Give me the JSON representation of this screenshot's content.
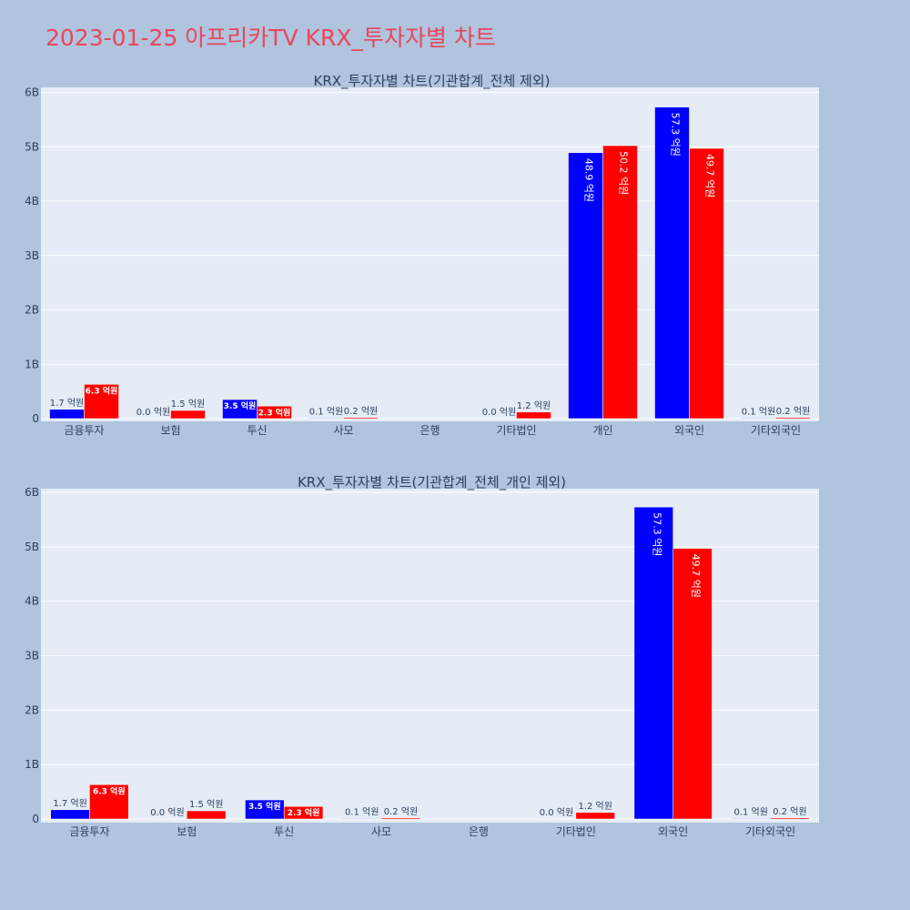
{
  "page": {
    "title": "2023-01-25 아프리카TV KRX_투자자별 차트"
  },
  "colors": {
    "background": "#b0c4de",
    "plot_bg": "#e5ecf6",
    "title": "#e8475c",
    "sell": "#0000ff",
    "buy": "#ff0000"
  },
  "chart_data": [
    {
      "type": "bar",
      "title": "KRX_투자자별 차트(기관합계_전체 제외)",
      "categories": [
        "금융투자",
        "보험",
        "투신",
        "사모",
        "은행",
        "기타법인",
        "개인",
        "외국인",
        "기타외국인"
      ],
      "ylim": [
        0,
        6000000000
      ],
      "yticks": [
        0,
        1000000000,
        2000000000,
        3000000000,
        4000000000,
        5000000000,
        6000000000
      ],
      "ytick_labels": [
        "0",
        "1B",
        "2B",
        "3B",
        "4B",
        "5B",
        "6B"
      ],
      "grid": true,
      "series": [
        {
          "color": "#0000ff",
          "values": [
            170000000,
            0,
            350000000,
            10000000,
            0,
            0,
            4890000000,
            5730000000,
            10000000
          ],
          "labels": [
            "1.7 억원",
            "0.0 억원",
            "3.5 억원",
            "0.1 억원",
            "",
            "0.0 억원",
            "48.9 억원",
            "57.3 억원",
            "0.1 억원"
          ]
        },
        {
          "color": "#ff0000",
          "values": [
            630000000,
            150000000,
            230000000,
            20000000,
            0,
            120000000,
            5020000000,
            4970000000,
            20000000
          ],
          "labels": [
            "6.3 억원",
            "1.5 억원",
            "2.3 억원",
            "0.2 억원",
            "",
            "1.2 억원",
            "50.2 억원",
            "49.7 억원",
            "0.2 억원"
          ]
        }
      ]
    },
    {
      "type": "bar",
      "title": "KRX_투자자별 차트(기관합계_전체_개인 제외)",
      "categories": [
        "금융투자",
        "보험",
        "투신",
        "사모",
        "은행",
        "기타법인",
        "외국인",
        "기타외국인"
      ],
      "ylim": [
        0,
        6000000000
      ],
      "yticks": [
        0,
        1000000000,
        2000000000,
        3000000000,
        4000000000,
        5000000000,
        6000000000
      ],
      "ytick_labels": [
        "0",
        "1B",
        "2B",
        "3B",
        "4B",
        "5B",
        "6B"
      ],
      "grid": true,
      "series": [
        {
          "color": "#0000ff",
          "values": [
            170000000,
            0,
            350000000,
            10000000,
            0,
            0,
            5730000000,
            10000000
          ],
          "labels": [
            "1.7 억원",
            "0.0 억원",
            "3.5 억원",
            "0.1 억원",
            "",
            "0.0 억원",
            "57.3 억원",
            "0.1 억원"
          ]
        },
        {
          "color": "#ff0000",
          "values": [
            630000000,
            150000000,
            230000000,
            20000000,
            0,
            120000000,
            4970000000,
            20000000
          ],
          "labels": [
            "6.3 억원",
            "1.5 억원",
            "2.3 억원",
            "0.2 억원",
            "",
            "1.2 억원",
            "49.7 억원",
            "0.2 억원"
          ]
        }
      ]
    }
  ]
}
